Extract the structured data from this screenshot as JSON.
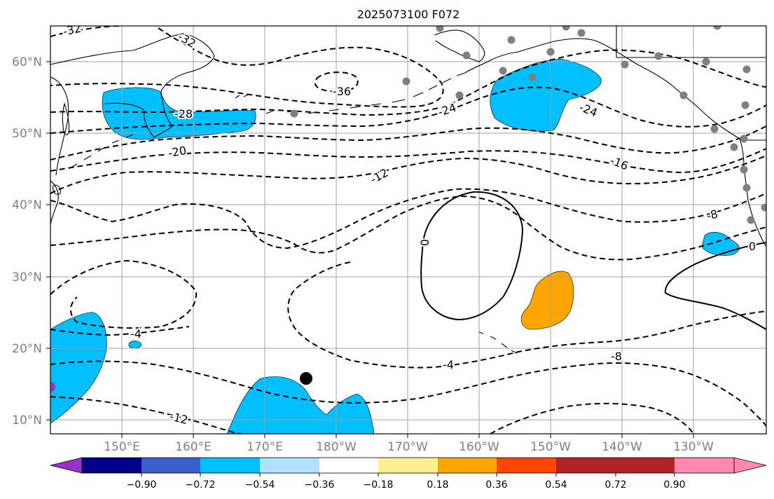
{
  "title": "2025073100 F072",
  "chart_data": {
    "type": "contour-map",
    "projection": "PlateCarree",
    "lon_range": [
      140,
      240
    ],
    "lat_range": [
      8,
      65
    ],
    "lat_ticks": [
      "10°N",
      "20°N",
      "30°N",
      "40°N",
      "50°N",
      "60°N"
    ],
    "lon_ticks": [
      "150°E",
      "160°E",
      "170°E",
      "180°W",
      "170°W",
      "160°W",
      "150°W",
      "140°W",
      "130°W"
    ],
    "contour_labels": [
      "-32",
      "-32",
      "-36",
      "-28",
      "-24",
      "-24",
      "-20",
      "-16",
      "-12",
      "-8",
      "0",
      "0",
      "-4",
      "-4",
      "-8",
      "-12"
    ],
    "colorbar": {
      "extend": "both",
      "colors": [
        "#9932cc",
        "#00008b",
        "#3a5fcd",
        "#00bfff",
        "#b0e2ff",
        "#ffffff",
        "#fff08f",
        "#ffa500",
        "#ff4500",
        "#b22222",
        "#ff88b0"
      ],
      "tick_labels": [
        "−0.90",
        "−0.72",
        "−0.54",
        "−0.36",
        "−0.18",
        "0.18",
        "0.36",
        "0.54",
        "0.72",
        "0.90"
      ]
    },
    "station_marker_color": "#808080",
    "storm_marker_color": "#000000"
  }
}
